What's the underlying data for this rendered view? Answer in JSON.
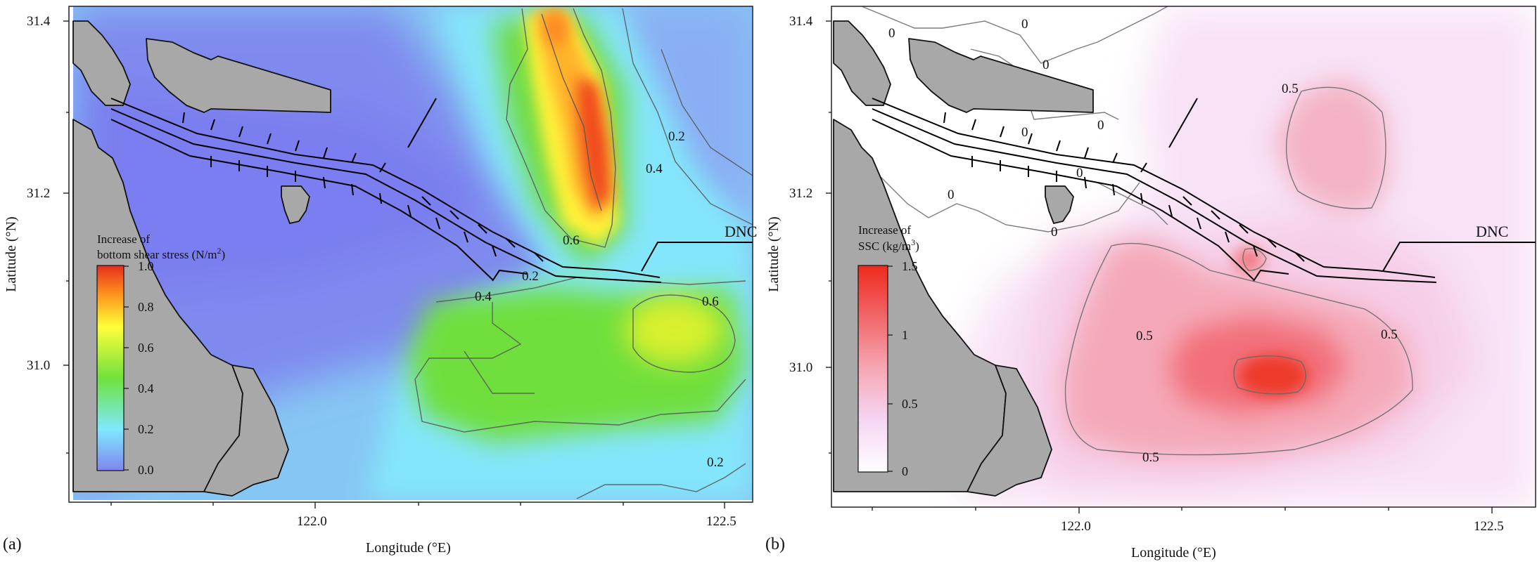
{
  "panels": [
    {
      "id": "a",
      "panel_label": "(a)",
      "xlabel": "Longitude (°E)",
      "ylabel": "Latitude (°N)",
      "yticks": [
        "31.4",
        "31.2",
        "31.0"
      ],
      "xticks": [
        "122.0",
        "122.5"
      ],
      "colorbar_title_1": "Increase of",
      "colorbar_title_2": "bottom shear stress (N/m",
      "colorbar_title_sup": "2",
      "colorbar_title_end": ")",
      "colorbar_ticks": [
        "1.0",
        "0.8",
        "0.6",
        "0.4",
        "0.2",
        "0.0"
      ],
      "contour_labels": [
        "0.2",
        "0.4",
        "0.6",
        "0.2",
        "0.4",
        "0.6",
        "0.2"
      ],
      "place_label": "DNC",
      "colormap": [
        "#7f86ee",
        "#80e8ff",
        "#6fe23c",
        "#ffff3a",
        "#ff9a1e",
        "#e62d1c"
      ]
    },
    {
      "id": "b",
      "panel_label": "(b)",
      "xlabel": "Longitude (°E)",
      "ylabel": "Latitude (°N)",
      "yticks": [
        "31.4",
        "31.2",
        "31.0"
      ],
      "xticks": [
        "122.0",
        "122.5"
      ],
      "colorbar_title_1": "Increase of",
      "colorbar_title_2": "SSC (kg/m",
      "colorbar_title_sup": "3",
      "colorbar_title_end": ")",
      "colorbar_ticks": [
        "1.5",
        "1",
        "0.5",
        "0"
      ],
      "contour_labels": [
        "0",
        "0",
        "0",
        "0",
        "0",
        "0",
        "0",
        "0",
        "0.5",
        "0.5",
        "0.5",
        "0.5"
      ],
      "place_label": "DNC",
      "colormap": [
        "#ffffff",
        "#f6d6f4",
        "#f7a8b4",
        "#f05a5a",
        "#ee2a1c"
      ]
    }
  ]
}
